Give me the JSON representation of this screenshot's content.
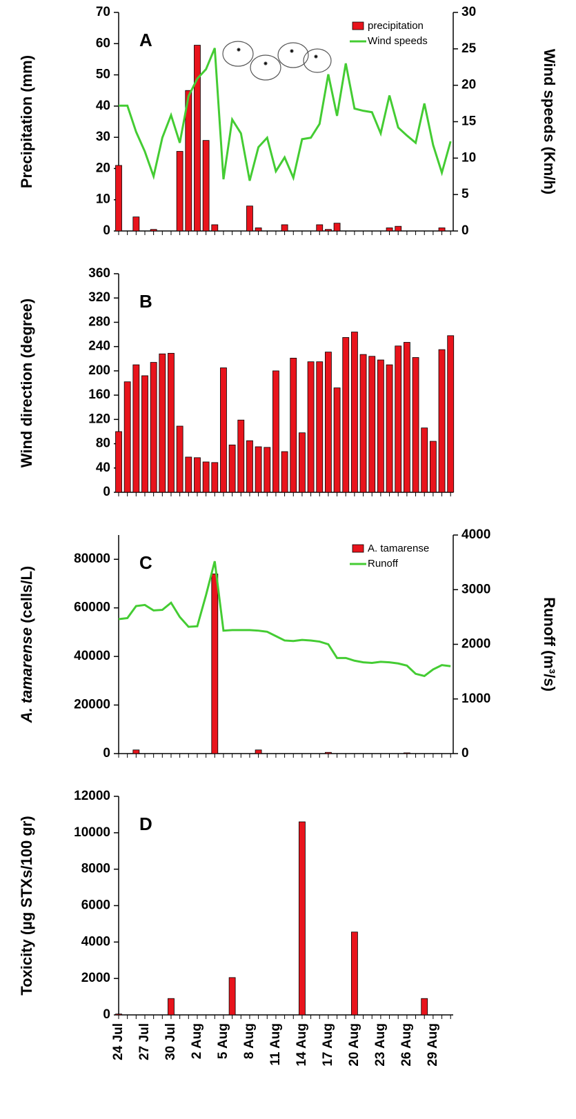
{
  "chart_data": [
    {
      "type": "combo",
      "panel": "A",
      "ylabel": "Precipitation (mm)",
      "y2label": "Wind speeds (Km/h)",
      "ylim": [
        0,
        70
      ],
      "yticks": [
        0,
        10,
        20,
        30,
        40,
        50,
        60,
        70
      ],
      "y2lim": [
        0,
        30
      ],
      "y2ticks": [
        0,
        5,
        10,
        15,
        20,
        25,
        30
      ],
      "legend": "upper right",
      "series": [
        {
          "name": "precipitation",
          "type": "bar",
          "color": "#e8141c",
          "values": [
            21,
            0,
            4.5,
            0,
            0.5,
            0,
            0,
            25.5,
            45,
            59.5,
            29,
            2,
            0,
            0,
            0,
            8,
            1,
            0,
            0,
            2,
            0,
            0,
            0,
            2,
            0.5,
            2.5,
            0,
            0,
            0,
            0,
            0,
            1,
            1.5,
            0,
            0,
            0,
            0,
            1,
            0
          ]
        },
        {
          "name": "Wind speeds",
          "type": "line",
          "color": "#44cc33",
          "axis": "y2",
          "values": [
            17.2,
            17.2,
            13.6,
            10.9,
            7.5,
            12.8,
            15.9,
            12.1,
            18.5,
            20.9,
            22.2,
            25.1,
            7.1,
            15.3,
            13.4,
            6.9,
            11.5,
            12.8,
            8.2,
            10.1,
            7.3,
            12.6,
            12.8,
            14.7,
            21.5,
            15.8,
            23.0,
            16.8,
            16.5,
            16.3,
            13.4,
            18.6,
            14.2,
            13.1,
            12.1,
            17.5,
            11.8,
            8.0,
            12.3
          ]
        }
      ]
    },
    {
      "type": "bar",
      "panel": "B",
      "ylabel": "Wind direction (degree)",
      "ylim": [
        0,
        360
      ],
      "yticks": [
        0,
        40,
        80,
        120,
        160,
        200,
        240,
        280,
        320,
        360
      ],
      "series": [
        {
          "type": "bar",
          "color": "#e8141c",
          "values": [
            100,
            182,
            210,
            192,
            214,
            228,
            229,
            109,
            58,
            57,
            50,
            49,
            205,
            78,
            119,
            85,
            75,
            74,
            200,
            67,
            221,
            98,
            215,
            215,
            231,
            172,
            255,
            264,
            227,
            224,
            218,
            210,
            241,
            247,
            222,
            106,
            84,
            235,
            258
          ]
        }
      ]
    },
    {
      "type": "combo",
      "panel": "C",
      "ylabel_italic": "A. tamarense",
      "ylabel": "(cells/L)",
      "y2label": "Runoff (m³/s)",
      "ylim": [
        0,
        90000
      ],
      "yticks": [
        0,
        20000,
        40000,
        60000,
        80000
      ],
      "y2lim": [
        0,
        4000
      ],
      "y2ticks": [
        0,
        1000,
        2000,
        3000,
        4000
      ],
      "legend": "upper right",
      "series": [
        {
          "name": "A. tamarense",
          "type": "bar",
          "color": "#e8141c",
          "values": [
            0,
            0,
            1500,
            0,
            0,
            0,
            0,
            0,
            0,
            0,
            0,
            74000,
            0,
            0,
            0,
            0,
            1500,
            0,
            0,
            0,
            0,
            0,
            0,
            0,
            500,
            0,
            0,
            0,
            0,
            0,
            0,
            0,
            0,
            300,
            0,
            0,
            0,
            0,
            0
          ]
        },
        {
          "name": "Runoff",
          "type": "line",
          "color": "#44cc33",
          "axis": "y2",
          "values": [
            2460,
            2480,
            2700,
            2720,
            2620,
            2630,
            2760,
            2500,
            2320,
            2330,
            2900,
            3520,
            2250,
            2260,
            2260,
            2260,
            2250,
            2230,
            2150,
            2070,
            2060,
            2080,
            2070,
            2050,
            2000,
            1750,
            1750,
            1700,
            1670,
            1660,
            1680,
            1670,
            1650,
            1610,
            1460,
            1420,
            1540,
            1620,
            1600
          ]
        }
      ]
    },
    {
      "type": "bar",
      "panel": "D",
      "ylabel": "Toxicity (µg STXs/100 gr)",
      "ylim": [
        0,
        12000
      ],
      "yticks": [
        0,
        2000,
        4000,
        6000,
        8000,
        10000,
        12000
      ],
      "categories": [
        "24 Jul",
        null,
        null,
        "27 Jul",
        null,
        null,
        "30 Jul",
        null,
        null,
        "2 Aug",
        null,
        null,
        "5 Aug",
        null,
        null,
        "8 Aug",
        null,
        null,
        "11 Aug",
        null,
        null,
        "14 Aug",
        null,
        null,
        "17 Aug",
        null,
        null,
        "20 Aug",
        null,
        null,
        "23 Aug",
        null,
        null,
        "26 Aug",
        null,
        null,
        "29 Aug",
        null,
        null
      ],
      "series": [
        {
          "type": "bar",
          "color": "#e8141c",
          "values": [
            50,
            0,
            0,
            0,
            0,
            0,
            900,
            0,
            0,
            0,
            0,
            0,
            0,
            2050,
            0,
            0,
            0,
            0,
            0,
            0,
            0,
            10600,
            0,
            0,
            0,
            0,
            0,
            4550,
            0,
            0,
            0,
            0,
            0,
            0,
            0,
            900,
            0,
            0,
            0
          ]
        }
      ]
    }
  ]
}
